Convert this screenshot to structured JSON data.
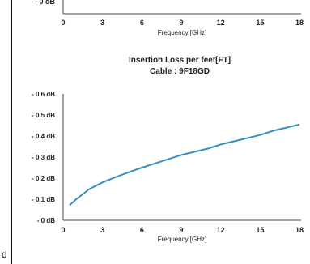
{
  "corner_label": "d",
  "chart_data": [
    {
      "type": "line",
      "title": "",
      "subtitle": "",
      "xlabel": "Frequency [GHz]",
      "ylabel": "",
      "xlim": [
        0,
        18
      ],
      "x_ticks": [
        0,
        3,
        6,
        9,
        12,
        15,
        18
      ],
      "x_tick_labels": [
        "0",
        "3",
        "6",
        "9",
        "12",
        "15",
        "18"
      ],
      "visible_y_tick_labels": [
        "- 0 dB"
      ],
      "grid": false,
      "legend": "none",
      "series": []
    },
    {
      "type": "line",
      "title": "Insertion Loss per feet[FT]",
      "subtitle": "Cable : 9F18GD",
      "xlabel": "Frequency [GHz]",
      "ylabel": "",
      "xlim": [
        0,
        18
      ],
      "ylim": [
        0,
        0.6
      ],
      "x_ticks": [
        0,
        3,
        6,
        9,
        12,
        15,
        18
      ],
      "x_tick_labels": [
        "0",
        "3",
        "6",
        "9",
        "12",
        "15",
        "18"
      ],
      "y_ticks": [
        0,
        0.1,
        0.2,
        0.3,
        0.4,
        0.5,
        0.6
      ],
      "y_tick_labels": [
        "- 0 dB",
        "- 0.1 dB",
        "- 0.2 dB",
        "- 0.3 dB",
        "- 0.4 dB",
        "- 0.5 dB",
        "- 0.6 dB"
      ],
      "grid": false,
      "legend": "none",
      "line_color": "#3a8fc4",
      "series": [
        {
          "x": [
            0.5,
            1,
            2,
            3,
            4,
            5,
            6,
            7,
            8,
            9,
            10,
            11,
            12,
            13,
            14,
            15,
            16,
            17,
            18
          ],
          "values": [
            0.072,
            0.1,
            0.148,
            0.18,
            0.205,
            0.228,
            0.25,
            0.27,
            0.29,
            0.31,
            0.325,
            0.34,
            0.36,
            0.375,
            0.39,
            0.405,
            0.425,
            0.44,
            0.455
          ]
        }
      ]
    }
  ]
}
